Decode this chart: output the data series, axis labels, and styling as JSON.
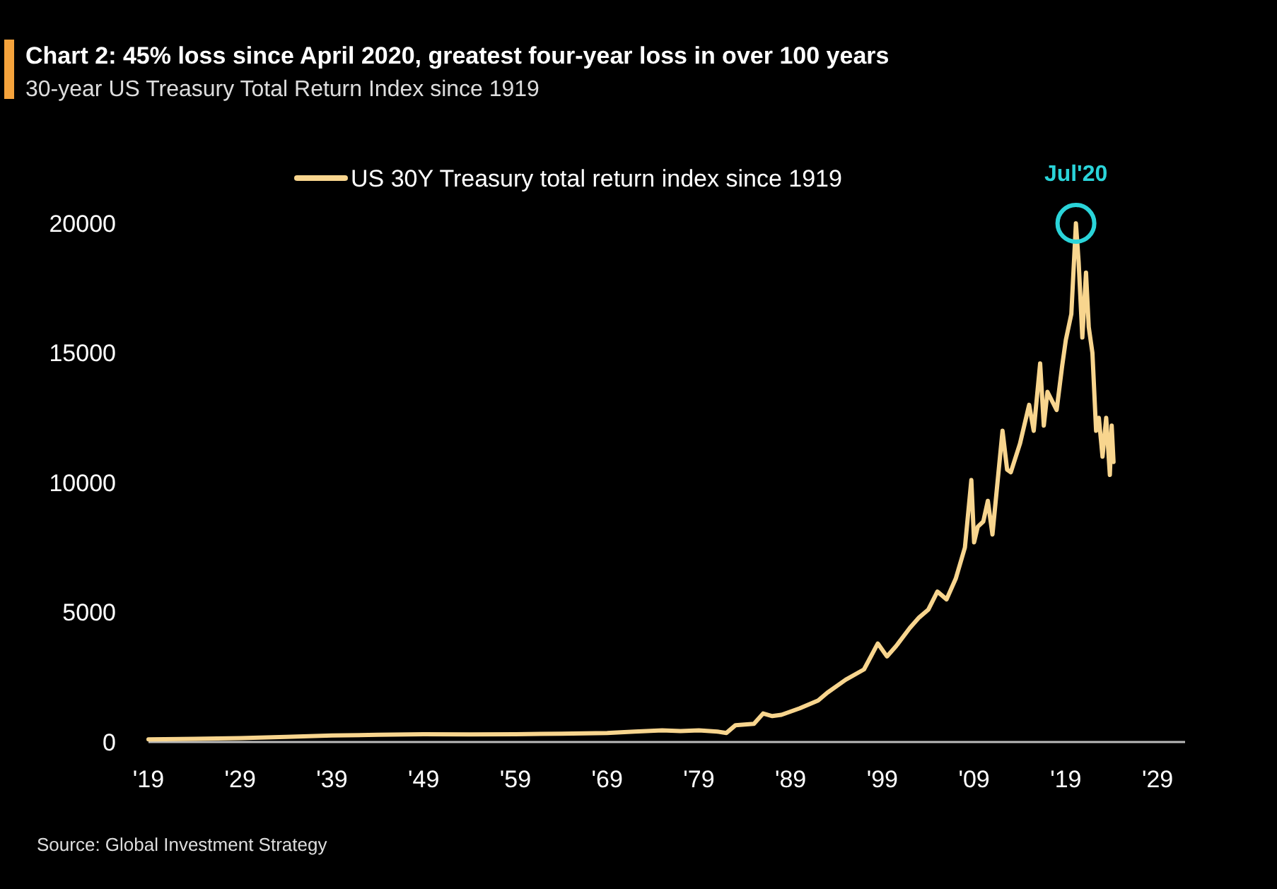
{
  "chart_data": {
    "type": "line",
    "title": "Chart 2: 45% loss since April 2020, greatest four-year loss in over 100 years",
    "subtitle": "30-year US Treasury Total Return Index since 1919",
    "annotations": [
      {
        "text": "Jul'20",
        "x": 2020.1,
        "y": 20000
      },
      "Source: Global Investment Strategy"
    ],
    "xlim": [
      1919,
      2032
    ],
    "xticks": [
      {
        "value": 1919,
        "label": "'19"
      },
      {
        "value": 1929,
        "label": "'29"
      },
      {
        "value": 1939,
        "label": "'39"
      },
      {
        "value": 1949,
        "label": "'49"
      },
      {
        "value": 1959,
        "label": "'59"
      },
      {
        "value": 1969,
        "label": "'69"
      },
      {
        "value": 1979,
        "label": "'79"
      },
      {
        "value": 1989,
        "label": "'89"
      },
      {
        "value": 1999,
        "label": "'99"
      },
      {
        "value": 2009,
        "label": "'09"
      },
      {
        "value": 2019,
        "label": "'19"
      },
      {
        "value": 2029,
        "label": "'29"
      }
    ],
    "ylim": [
      0,
      20000
    ],
    "yticks": [
      0,
      5000,
      10000,
      15000,
      20000
    ],
    "grid": false,
    "legend": "top",
    "series": [
      {
        "name": "US 30Y Treasury total return index since 1919",
        "color": "#f8d58e",
        "x": [
          1919,
          1924,
          1929,
          1934,
          1939,
          1944,
          1949,
          1954,
          1959,
          1964,
          1969,
          1972,
          1975,
          1977,
          1979,
          1981,
          1982,
          1983,
          1985,
          1986,
          1987,
          1988,
          1990,
          1992,
          1993,
          1995,
          1997,
          1998.5,
          1999.5,
          2000.5,
          2002,
          2003,
          2004,
          2005,
          2006,
          2007,
          2008,
          2008.7,
          2009,
          2009.4,
          2010,
          2010.5,
          2011,
          2012.1,
          2012.6,
          2013,
          2014,
          2015,
          2015.5,
          2016.2,
          2016.6,
          2017,
          2018,
          2018.6,
          2019,
          2019.6,
          2020.1,
          2020.4,
          2020.8,
          2021.2,
          2021.5,
          2021.9,
          2022.3,
          2022.6,
          2023,
          2023.4,
          2023.8,
          2024,
          2024.2
        ],
        "values": [
          100,
          120,
          150,
          200,
          250,
          280,
          300,
          290,
          300,
          320,
          350,
          400,
          450,
          420,
          450,
          400,
          350,
          650,
          700,
          1100,
          1000,
          1050,
          1300,
          1600,
          1900,
          2400,
          2800,
          3800,
          3300,
          3700,
          4400,
          4800,
          5100,
          5800,
          5500,
          6300,
          7500,
          10100,
          7700,
          8300,
          8500,
          9300,
          8000,
          12000,
          10500,
          10400,
          11500,
          13000,
          12000,
          14600,
          12200,
          13500,
          12800,
          14500,
          15500,
          16500,
          20000,
          18500,
          15600,
          18100,
          16000,
          15000,
          12000,
          12500,
          11000,
          12500,
          10300,
          12200,
          10800
        ]
      }
    ]
  }
}
